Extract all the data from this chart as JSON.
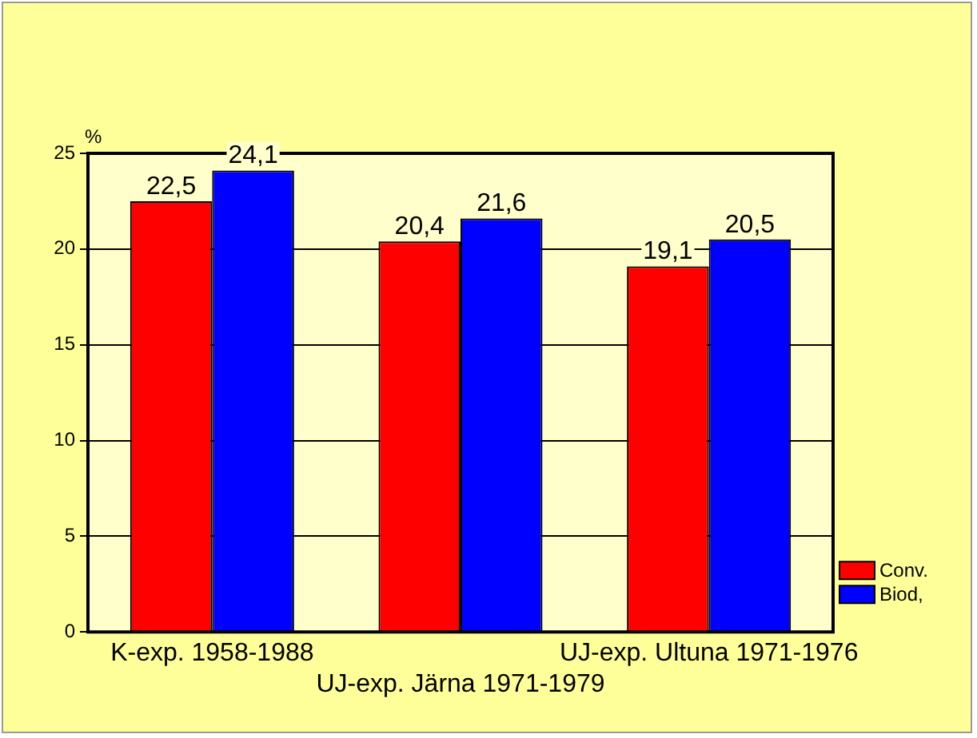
{
  "chart_data": {
    "type": "bar",
    "ylabel": "%",
    "categories": [
      "K-exp. 1958-1988",
      "UJ-exp. Järna 1971-1979",
      "UJ-exp. Ultuna 1971-1976"
    ],
    "series": [
      {
        "name": "Conv.",
        "color": "#ff0000",
        "values": [
          22.5,
          20.4,
          19.1
        ],
        "value_labels": [
          "22,5",
          "20,4",
          "19,1"
        ]
      },
      {
        "name": "Biod,",
        "color": "#0000ff",
        "values": [
          24.1,
          21.6,
          20.5
        ],
        "value_labels": [
          "24,1",
          "21,6",
          "20,5"
        ]
      }
    ],
    "ylim": [
      0,
      25
    ],
    "yticks": [
      0,
      5,
      10,
      15,
      20,
      25
    ],
    "grid": "y",
    "legend": "bottom right"
  }
}
